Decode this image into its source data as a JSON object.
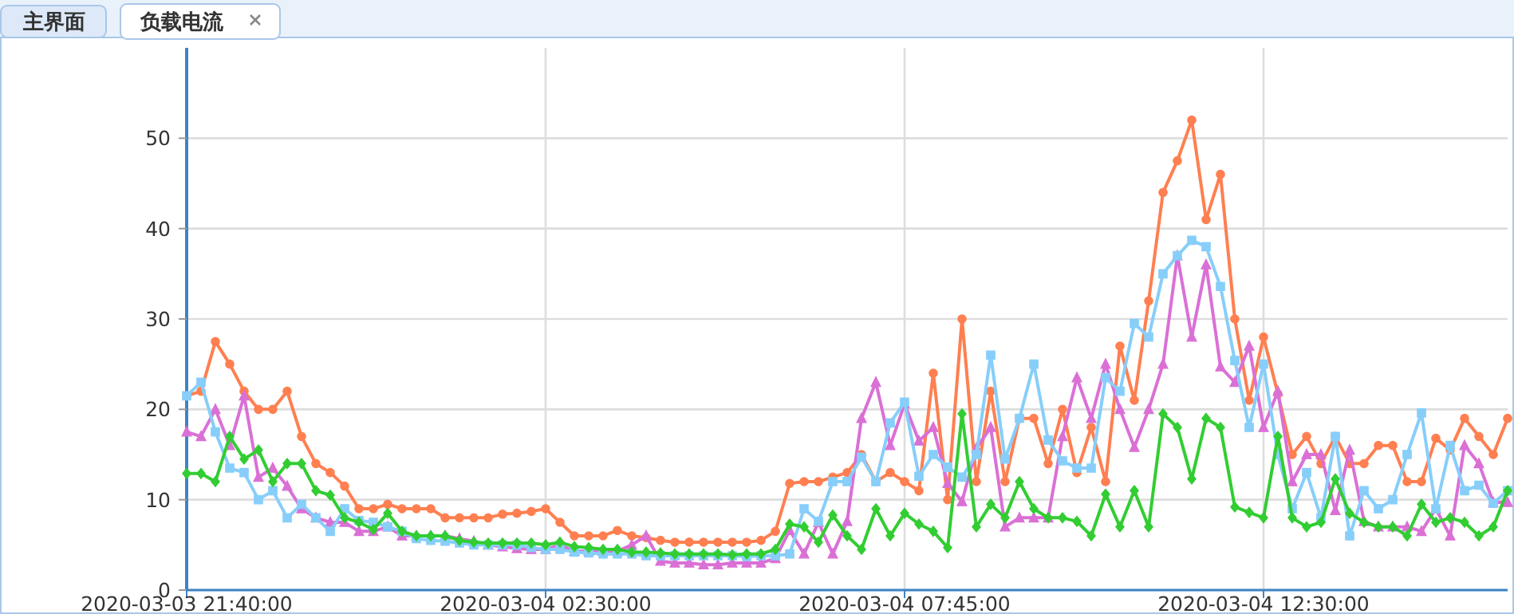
{
  "chart_data": {
    "type": "line",
    "title": "负载电流",
    "annotations": [
      "主界面"
    ],
    "categories": [
      "2020-03-03 21:40:00",
      null,
      null,
      null,
      null,
      null,
      null,
      null,
      null,
      null,
      null,
      null,
      null,
      null,
      null,
      null,
      null,
      null,
      null,
      null,
      null,
      null,
      null,
      null,
      null,
      "2020-03-04 02:30:00",
      null,
      null,
      null,
      null,
      null,
      null,
      null,
      null,
      null,
      null,
      null,
      null,
      null,
      null,
      null,
      null,
      null,
      null,
      null,
      null,
      null,
      null,
      null,
      null,
      "2020-03-04 07:45:00",
      null,
      null,
      null,
      null,
      null,
      null,
      null,
      null,
      null,
      null,
      null,
      null,
      null,
      null,
      null,
      null,
      null,
      null,
      null,
      null,
      null,
      null,
      null,
      null,
      "2020-03-04 12:30:00",
      null,
      null,
      null,
      null,
      null,
      null,
      null,
      null,
      null,
      null,
      null,
      null,
      null,
      null,
      null,
      null,
      null
    ],
    "series": [
      {
        "color": "#ff7f50",
        "marker": "circle",
        "values": [
          21.5,
          22,
          27.5,
          25,
          22,
          20,
          20,
          22,
          17,
          14,
          13,
          11.5,
          9,
          9,
          9.5,
          9,
          9,
          9,
          8,
          8,
          8,
          8,
          8.4,
          8.5,
          8.7,
          9,
          7.5,
          6,
          6,
          6,
          6.6,
          6,
          5.8,
          5.5,
          5.3,
          5.3,
          5.3,
          5.3,
          5.3,
          5.3,
          5.5,
          6.5,
          11.8,
          12,
          12,
          12.5,
          13,
          15,
          12,
          13,
          12,
          11,
          24,
          10,
          30,
          12,
          22,
          12,
          19,
          19,
          14,
          20,
          13,
          18,
          12,
          27,
          21,
          32,
          44,
          47.5,
          52,
          41,
          46,
          30,
          21,
          28,
          21.7,
          15,
          17,
          14,
          17,
          14,
          14,
          16,
          16,
          12,
          12,
          16.8,
          15.5,
          19,
          17,
          15,
          19
        ]
      },
      {
        "color": "#da70d6",
        "marker": "triangle",
        "values": [
          17.5,
          17,
          20,
          16,
          21.5,
          12.5,
          13.5,
          11.5,
          9,
          8,
          7.5,
          7.5,
          6.5,
          6.5,
          7,
          6,
          6,
          6,
          6,
          5.7,
          5.4,
          5,
          4.8,
          4.6,
          4.5,
          4.5,
          5,
          4.3,
          4.3,
          4.3,
          4.3,
          5,
          6,
          3.2,
          3,
          3,
          2.8,
          2.8,
          3,
          3,
          3,
          3.5,
          6.6,
          4,
          7.5,
          4,
          7.6,
          19,
          23,
          16,
          20.6,
          16.5,
          18,
          11.8,
          9.8,
          15.7,
          18,
          7,
          8,
          8,
          8,
          17,
          23.5,
          19,
          25,
          20,
          15.8,
          20,
          25,
          37,
          28,
          36,
          24.7,
          23,
          27,
          18,
          22,
          12,
          15,
          15,
          8.8,
          15.5,
          7.6,
          7,
          7,
          7,
          6.5,
          9,
          6,
          16,
          14,
          9.7,
          9.7
        ]
      },
      {
        "color": "#87cefa",
        "marker": "square",
        "values": [
          21.5,
          23,
          17.5,
          13.5,
          13,
          10,
          11,
          8,
          9.5,
          8,
          6.5,
          9,
          7.7,
          7.5,
          7,
          6.5,
          5.7,
          5.5,
          5.4,
          5.2,
          5,
          5,
          5,
          5,
          4.7,
          4.5,
          4.5,
          4.2,
          4.1,
          4,
          4,
          4,
          3.8,
          3.8,
          3.8,
          3.8,
          3.8,
          3.8,
          3.8,
          3.7,
          3.8,
          3.8,
          4,
          9,
          7.6,
          12,
          12,
          14.7,
          12,
          18.5,
          20.8,
          12.6,
          15,
          13.6,
          12.5,
          15,
          26,
          14.5,
          19,
          25,
          16.6,
          14.3,
          13.5,
          13.5,
          23.5,
          22,
          29.5,
          28,
          35,
          37,
          38.7,
          38,
          33.6,
          25.4,
          18,
          25,
          15,
          9,
          13,
          8,
          17,
          6,
          11,
          9,
          10,
          15,
          19.6,
          9,
          16,
          11,
          11.6,
          9.6,
          11
        ]
      },
      {
        "color": "#32cd32",
        "marker": "diamond",
        "values": [
          12.9,
          12.9,
          12,
          17,
          14.5,
          15.5,
          12,
          14,
          14,
          11,
          10.5,
          8,
          7.5,
          6.7,
          8.5,
          6.5,
          6,
          6,
          6,
          5.5,
          5.3,
          5.2,
          5.2,
          5.2,
          5.2,
          5,
          5.3,
          4.8,
          4.7,
          4.5,
          4.5,
          4.2,
          4.2,
          4.1,
          4,
          4,
          4,
          4,
          3.9,
          4,
          4,
          4.5,
          7.3,
          7,
          5.3,
          8.3,
          6,
          4.5,
          9,
          6,
          8.5,
          7.3,
          6.5,
          4.7,
          19.5,
          7,
          9.5,
          8,
          12,
          9,
          8,
          8,
          7.6,
          6,
          10.6,
          7,
          11,
          7,
          19.5,
          18,
          12.3,
          19,
          18,
          9.2,
          8.6,
          8,
          17,
          8,
          7,
          7.5,
          12.3,
          8.5,
          7.5,
          7,
          7,
          6,
          9.5,
          7.5,
          8,
          7.5,
          6,
          7,
          11
        ]
      }
    ],
    "ylim": [
      0,
      60
    ],
    "yticks": [
      0,
      10,
      20,
      30,
      40,
      50
    ],
    "grid": true
  }
}
